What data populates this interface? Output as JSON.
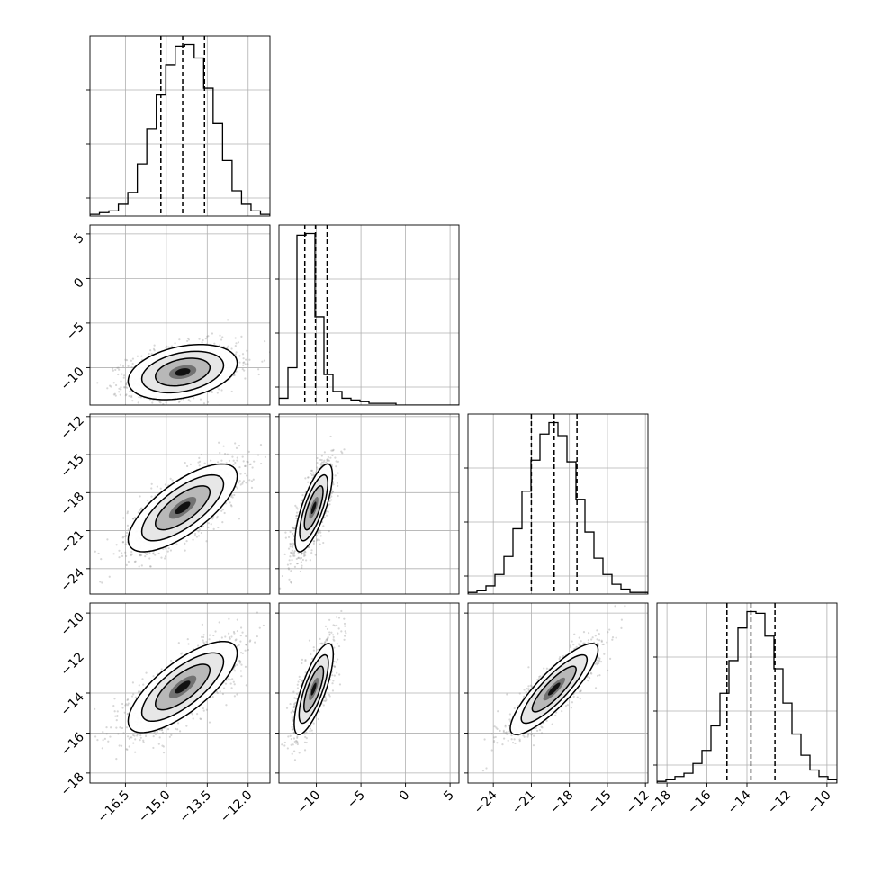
{
  "chart_data": {
    "type": "corner",
    "title": "",
    "grid": true,
    "n_params": 4,
    "params": [
      {
        "index": 0,
        "label": "",
        "range": [
          -17.8,
          -11.2
        ],
        "ticks": [
          -16.5,
          -15.0,
          -13.5,
          -12.0
        ],
        "tick_labels": [
          "−16.5",
          "−15.0",
          "−13.5",
          "−12.0"
        ],
        "quantiles": [
          -15.2,
          -14.4,
          -13.6
        ],
        "hist_counts": [
          1,
          2,
          3,
          7,
          14,
          31,
          52,
          72,
          90,
          101,
          102,
          94,
          76,
          55,
          33,
          15,
          7,
          3,
          1
        ]
      },
      {
        "index": 1,
        "label": "",
        "range": [
          -14.2,
          6.0
        ],
        "ticks": [
          -10,
          -5,
          0,
          5
        ],
        "tick_labels": [
          "−10",
          "−5",
          "0",
          "5"
        ],
        "quantiles": [
          -11.3,
          -10.1,
          -8.8
        ],
        "hist_counts": [
          4,
          22,
          100,
          101,
          52,
          18,
          8,
          4,
          3,
          2,
          1,
          1,
          1,
          0,
          0,
          0,
          0,
          0,
          0,
          0
        ]
      },
      {
        "index": 2,
        "label": "",
        "range": [
          -26.0,
          -11.8
        ],
        "ticks": [
          -24,
          -21,
          -18,
          -15,
          -12
        ],
        "tick_labels": [
          "−24",
          "−21",
          "−18",
          "−15",
          "−12"
        ],
        "quantiles": [
          -21.0,
          -19.2,
          -17.4
        ],
        "hist_counts": [
          1,
          2,
          5,
          12,
          23,
          40,
          63,
          82,
          98,
          105,
          97,
          81,
          58,
          38,
          22,
          12,
          6,
          3,
          1,
          1
        ]
      },
      {
        "index": 3,
        "label": "",
        "range": [
          -18.5,
          -9.5
        ],
        "ticks": [
          -18,
          -16,
          -14,
          -12,
          -10
        ],
        "tick_labels": [
          "−18",
          "−16",
          "−14",
          "−12",
          "−10"
        ],
        "quantiles": [
          -15.0,
          -13.8,
          -12.6
        ],
        "hist_counts": [
          1,
          2,
          4,
          6,
          12,
          20,
          35,
          55,
          75,
          95,
          105,
          104,
          90,
          70,
          49,
          30,
          17,
          8,
          4,
          2
        ]
      }
    ],
    "pairs": [
      {
        "x": 0,
        "y": 1,
        "center": [
          -14.4,
          -10.5
        ],
        "cov": [
          [
            1.0,
            0.5
          ],
          [
            0.5,
            2.4
          ]
        ]
      },
      {
        "x": 0,
        "y": 2,
        "center": [
          -14.4,
          -19.2
        ],
        "cov": [
          [
            1.0,
            1.25
          ],
          [
            1.25,
            3.0
          ]
        ]
      },
      {
        "x": 1,
        "y": 2,
        "center": [
          -10.3,
          -19.2
        ],
        "cov": [
          [
            1.1,
            1.35
          ],
          [
            1.35,
            3.0
          ]
        ]
      },
      {
        "x": 0,
        "y": 3,
        "center": [
          -14.4,
          -13.7
        ],
        "cov": [
          [
            1.0,
            0.85
          ],
          [
            0.85,
            1.3
          ]
        ]
      },
      {
        "x": 1,
        "y": 3,
        "center": [
          -10.3,
          -13.8
        ],
        "cov": [
          [
            1.2,
            0.95
          ],
          [
            0.95,
            1.3
          ]
        ]
      },
      {
        "x": 2,
        "y": 3,
        "center": [
          -19.2,
          -13.8
        ],
        "cov": [
          [
            3.0,
            1.7
          ],
          [
            1.7,
            1.3
          ]
        ]
      }
    ],
    "contour_levels_sigma": [
      0.5,
      1.0,
      1.5,
      2.0
    ]
  }
}
